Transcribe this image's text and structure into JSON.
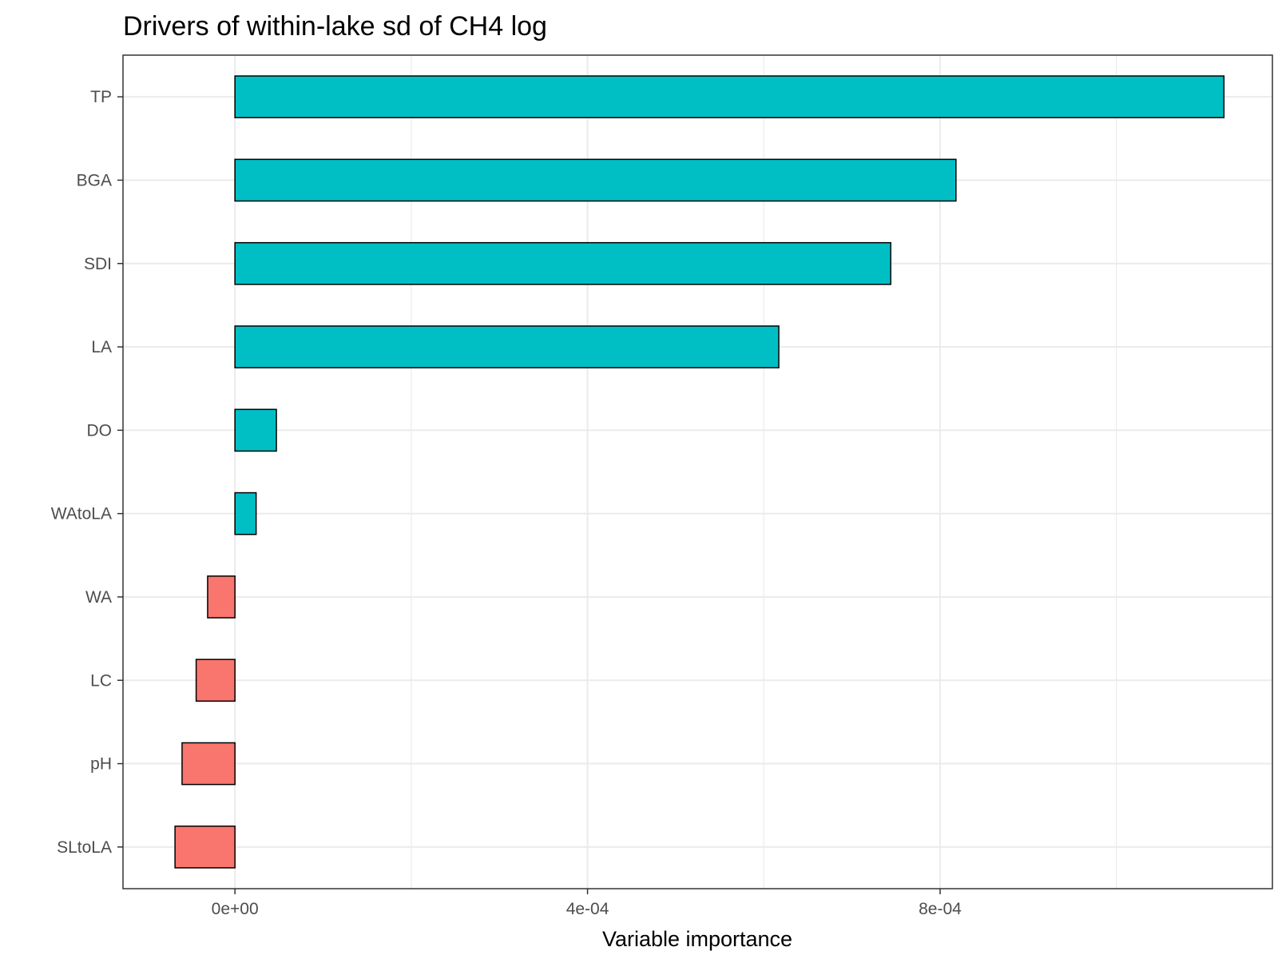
{
  "chart_data": {
    "type": "bar",
    "orientation": "horizontal",
    "title": "Drivers of within-lake sd of CH4 log",
    "xlabel": "Variable importance",
    "ylabel": "",
    "categories": [
      "SLtoLA",
      "pH",
      "LC",
      "WA",
      "WAtoLA",
      "DO",
      "LA",
      "SDI",
      "BGA",
      "TP"
    ],
    "values": [
      -6.8e-05,
      -6e-05,
      -4.4e-05,
      -3.1e-05,
      2.4e-05,
      4.7e-05,
      0.000617,
      0.000744,
      0.000818,
      0.001122
    ],
    "xlim": [
      -0.000127,
      0.001177
    ],
    "x_ticks": [
      0,
      0.0004,
      0.0008
    ],
    "x_tick_labels": [
      "0e+00",
      "4e-04",
      "8e-04"
    ],
    "grid": true,
    "colors": {
      "positive": "#00BFC4",
      "negative": "#F8766D",
      "bar_outline": "#000000",
      "grid": "#ebebeb",
      "panel_border": "#333333"
    }
  }
}
